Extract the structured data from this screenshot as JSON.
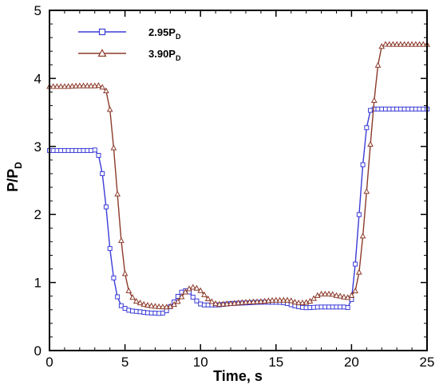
{
  "chart_data": {
    "type": "line",
    "xlabel": "Time, s",
    "ylabel_main": "P/P",
    "ylabel_sub": "D",
    "xlim": [
      0,
      25
    ],
    "ylim": [
      0,
      5
    ],
    "xticks": [
      0,
      5,
      10,
      15,
      20,
      25
    ],
    "yticks": [
      0,
      1,
      2,
      3,
      4,
      5
    ],
    "grid": false,
    "legend_position": "top-left",
    "series": [
      {
        "name_main": "2.95P",
        "name_sub": "D",
        "color": "#3b3bd6",
        "marker": "square",
        "points": [
          [
            0,
            2.94
          ],
          [
            1,
            2.94
          ],
          [
            2,
            2.94
          ],
          [
            2.8,
            2.94
          ],
          [
            3.2,
            2.9
          ],
          [
            3.5,
            2.6
          ],
          [
            3.8,
            2.0
          ],
          [
            4.0,
            1.5
          ],
          [
            4.3,
            1.0
          ],
          [
            4.6,
            0.72
          ],
          [
            5,
            0.62
          ],
          [
            6,
            0.57
          ],
          [
            7,
            0.55
          ],
          [
            7.6,
            0.56
          ],
          [
            8.2,
            0.7
          ],
          [
            8.7,
            0.85
          ],
          [
            9.1,
            0.88
          ],
          [
            9.6,
            0.76
          ],
          [
            10.2,
            0.67
          ],
          [
            11,
            0.67
          ],
          [
            12,
            0.69
          ],
          [
            13,
            0.7
          ],
          [
            14,
            0.71
          ],
          [
            15,
            0.71
          ],
          [
            15.6,
            0.7
          ],
          [
            16.2,
            0.66
          ],
          [
            17,
            0.63
          ],
          [
            18,
            0.64
          ],
          [
            19,
            0.64
          ],
          [
            19.6,
            0.64
          ],
          [
            20.0,
            0.75
          ],
          [
            20.3,
            1.4
          ],
          [
            20.6,
            2.3
          ],
          [
            20.9,
            3.1
          ],
          [
            21.2,
            3.5
          ],
          [
            21.5,
            3.55
          ],
          [
            22,
            3.55
          ],
          [
            23,
            3.55
          ],
          [
            24,
            3.55
          ],
          [
            25,
            3.55
          ]
        ]
      },
      {
        "name_main": "3.90P",
        "name_sub": "D",
        "color": "#8b3a2a",
        "marker": "triangle",
        "points": [
          [
            0,
            3.88
          ],
          [
            1,
            3.88
          ],
          [
            2,
            3.89
          ],
          [
            3,
            3.89
          ],
          [
            3.5,
            3.87
          ],
          [
            3.9,
            3.7
          ],
          [
            4.2,
            3.1
          ],
          [
            4.5,
            2.3
          ],
          [
            4.8,
            1.5
          ],
          [
            5.1,
            1.0
          ],
          [
            5.5,
            0.78
          ],
          [
            6,
            0.7
          ],
          [
            7,
            0.65
          ],
          [
            7.8,
            0.64
          ],
          [
            8.5,
            0.72
          ],
          [
            9.0,
            0.86
          ],
          [
            9.5,
            0.93
          ],
          [
            10.0,
            0.88
          ],
          [
            10.5,
            0.76
          ],
          [
            11.2,
            0.68
          ],
          [
            12,
            0.69
          ],
          [
            13,
            0.71
          ],
          [
            14,
            0.72
          ],
          [
            15,
            0.74
          ],
          [
            15.8,
            0.74
          ],
          [
            16.5,
            0.7
          ],
          [
            17.2,
            0.72
          ],
          [
            18,
            0.83
          ],
          [
            18.6,
            0.83
          ],
          [
            19.2,
            0.8
          ],
          [
            20.0,
            0.81
          ],
          [
            20.4,
            1.0
          ],
          [
            20.8,
            1.8
          ],
          [
            21.2,
            2.9
          ],
          [
            21.6,
            3.9
          ],
          [
            21.9,
            4.4
          ],
          [
            22.3,
            4.5
          ],
          [
            23,
            4.5
          ],
          [
            24,
            4.5
          ],
          [
            25,
            4.5
          ]
        ]
      }
    ]
  }
}
